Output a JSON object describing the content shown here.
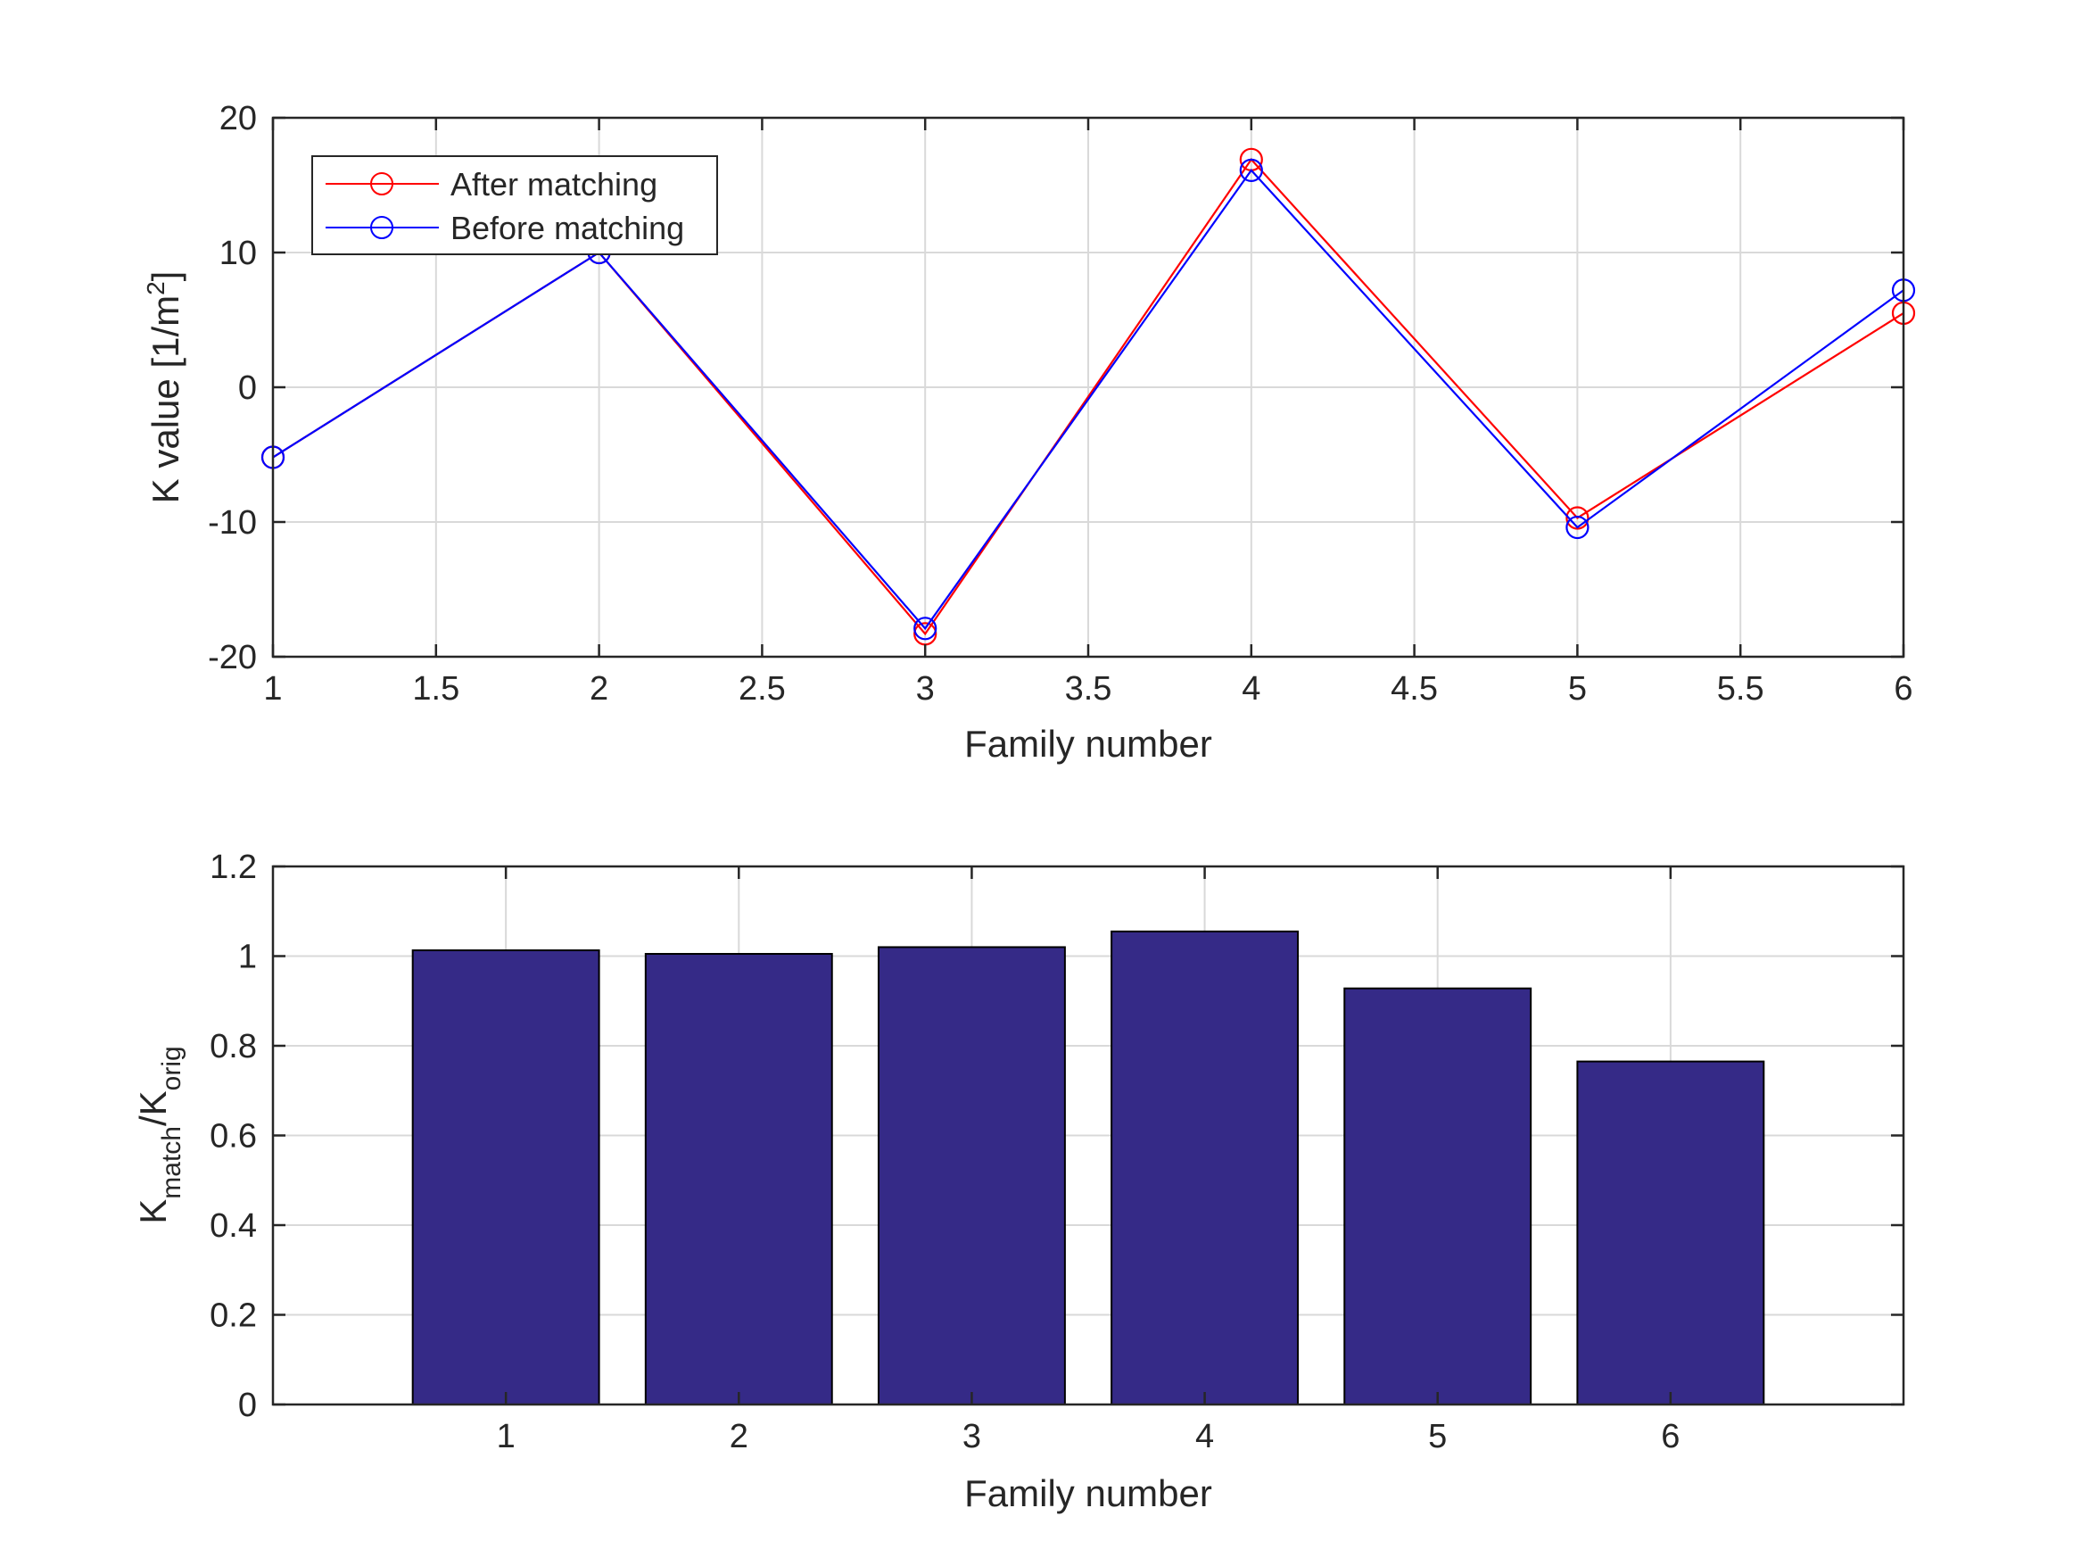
{
  "chart_data": [
    {
      "type": "line",
      "xlabel": "Family number",
      "ylabel": "K value [1/m",
      "ylabel_sup": "2",
      "ylabel_end": "]",
      "xlim": [
        1,
        6
      ],
      "ylim": [
        -20,
        20
      ],
      "grid": true,
      "legend_placement": "top-left",
      "x": [
        1,
        2,
        3,
        4,
        5,
        6
      ],
      "xticks": [
        "1",
        "1.5",
        "2",
        "2.5",
        "3",
        "3.5",
        "4",
        "4.5",
        "5",
        "5.5",
        "6"
      ],
      "yticks": [
        "-20",
        "-10",
        "0",
        "10",
        "20"
      ],
      "series": [
        {
          "name": "After matching",
          "color": "#ff0000",
          "marker": "circle",
          "values": [
            -5.2,
            10.0,
            -18.3,
            16.9,
            -9.7,
            5.5
          ]
        },
        {
          "name": "Before matching",
          "color": "#0000ff",
          "marker": "circle",
          "values": [
            -5.2,
            10.0,
            -17.9,
            16.1,
            -10.4,
            7.2
          ]
        }
      ]
    },
    {
      "type": "bar",
      "xlabel": "Family number",
      "ylabel_main": "K",
      "ylabel_sub1": "match",
      "ylabel_mid": "/K",
      "ylabel_sub2": "orig",
      "ylim": [
        0,
        1.2
      ],
      "grid": true,
      "categories": [
        "1",
        "2",
        "3",
        "4",
        "5",
        "6"
      ],
      "values": [
        1.013,
        1.005,
        1.02,
        1.055,
        0.928,
        0.765
      ],
      "yticks": [
        "0",
        "0.2",
        "0.4",
        "0.6",
        "0.8",
        "1",
        "1.2"
      ],
      "bar_color": "#352a87"
    }
  ]
}
